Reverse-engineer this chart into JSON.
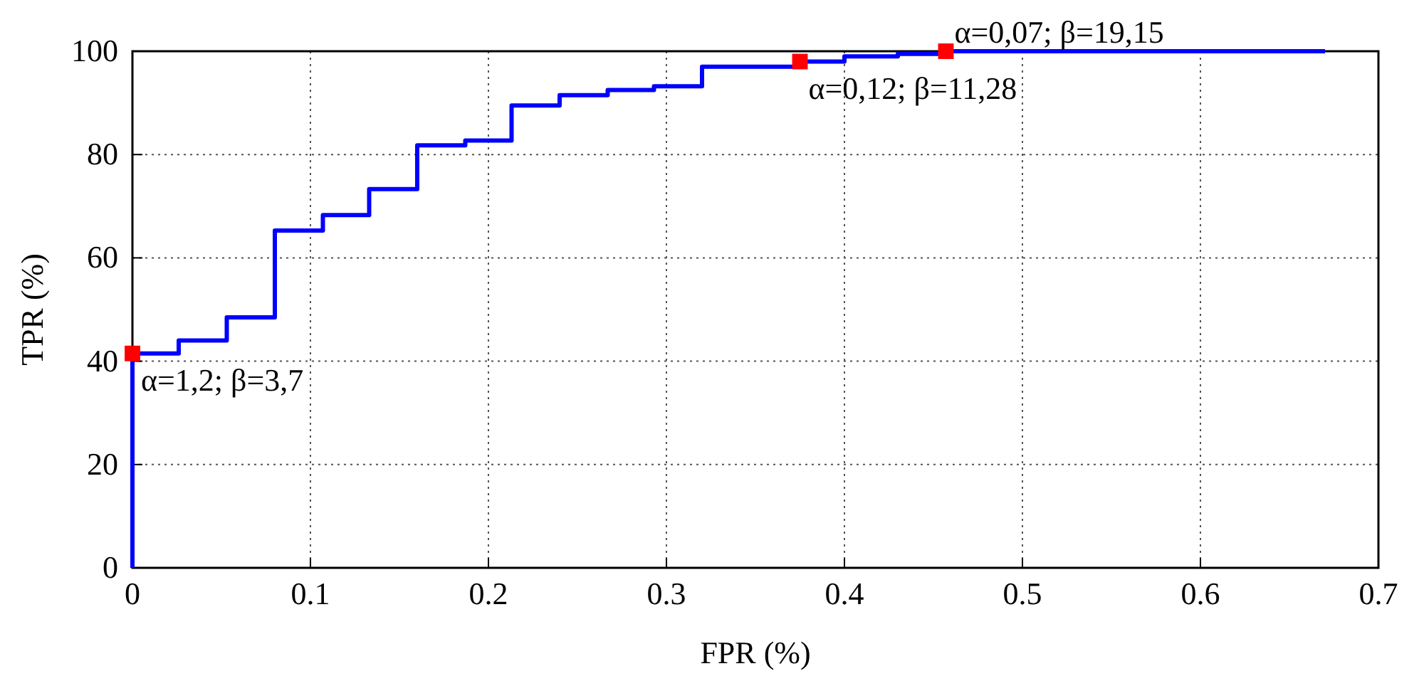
{
  "chart_data": {
    "type": "step",
    "xlabel": "FPR (%)",
    "ylabel": "TPR (%)",
    "xlim": [
      0,
      0.7
    ],
    "ylim": [
      0,
      100
    ],
    "xticks": [
      0,
      0.1,
      0.2,
      0.3,
      0.4,
      0.5,
      0.6,
      0.7
    ],
    "yticks": [
      0,
      20,
      40,
      60,
      80,
      100
    ],
    "grid": true,
    "series": [
      {
        "color": "#0000ff",
        "x": [
          0,
          0,
          0.026,
          0.053,
          0.08,
          0.107,
          0.133,
          0.16,
          0.187,
          0.213,
          0.24,
          0.267,
          0.293,
          0.32,
          0.375,
          0.4,
          0.43,
          0.457,
          0.67
        ],
        "values": [
          0,
          41.5,
          44,
          48.5,
          65.3,
          68.3,
          73.3,
          81.8,
          82.7,
          89.5,
          91.5,
          92.5,
          93.2,
          97,
          98,
          99,
          99.5,
          100,
          100
        ]
      },
      {
        "type": "scatter",
        "color": "#ff0000",
        "marker": "square",
        "x": [
          0,
          0.375,
          0.457
        ],
        "values": [
          41.5,
          98,
          100
        ]
      }
    ],
    "annotations": [
      {
        "text": "α=1,2; β=3,7",
        "x": 0,
        "y": 41.5
      },
      {
        "text": "α=0,12; β=11,28",
        "x": 0.375,
        "y": 98
      },
      {
        "text": "α=0,07; β=19,15",
        "x": 0.457,
        "y": 100
      }
    ]
  }
}
